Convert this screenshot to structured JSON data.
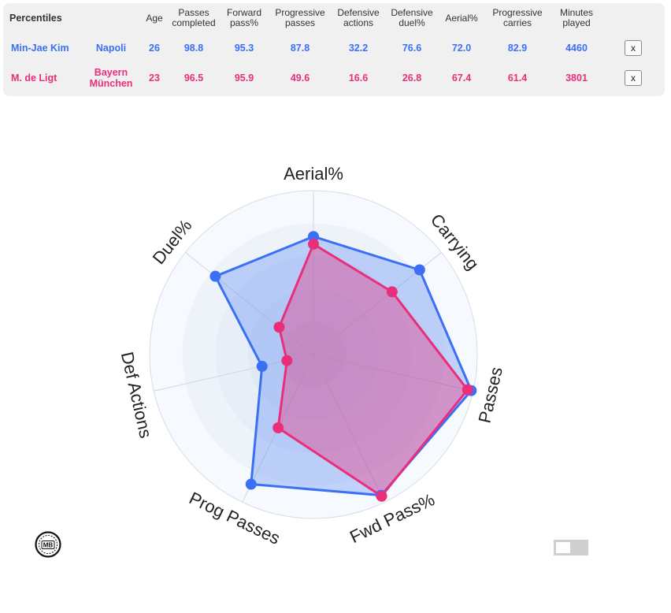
{
  "table": {
    "corner_label": "Percentiles",
    "columns": [
      "Age",
      "Passes completed",
      "Forward pass%",
      "Progressive passes",
      "Defensive actions",
      "Defensive duel%",
      "Aerial%",
      "Progressive carries",
      "Minutes played"
    ],
    "rows": [
      {
        "player": "Min-Jae Kim",
        "team": "Napoli",
        "values": [
          "26",
          "98.8",
          "95.3",
          "87.8",
          "32.2",
          "76.6",
          "72.0",
          "82.9",
          "4460"
        ],
        "remove_label": "x",
        "color": "#3b6ff5"
      },
      {
        "player": "M. de Ligt",
        "team": "Bayern München",
        "values": [
          "23",
          "96.5",
          "95.9",
          "49.6",
          "16.6",
          "26.8",
          "67.4",
          "61.4",
          "3801"
        ],
        "remove_label": "x",
        "color": "#ea2f7a"
      }
    ]
  },
  "chart_data": {
    "type": "radar",
    "axes": [
      "Aerial%",
      "Carrying",
      "Passes",
      "Fwd Pass%",
      "Prog Passes",
      "Def Actions",
      "Duel%"
    ],
    "range": [
      0,
      100
    ],
    "rings": 5,
    "series": [
      {
        "name": "Min-Jae Kim",
        "values": [
          72.0,
          82.9,
          98.8,
          95.3,
          87.8,
          32.2,
          76.6
        ],
        "color": "#3b6ff5"
      },
      {
        "name": "M. de Ligt",
        "values": [
          67.4,
          61.4,
          96.5,
          95.9,
          49.6,
          16.6,
          26.8
        ],
        "color": "#ea2f7a"
      }
    ]
  },
  "logo": {
    "text": "MB"
  }
}
